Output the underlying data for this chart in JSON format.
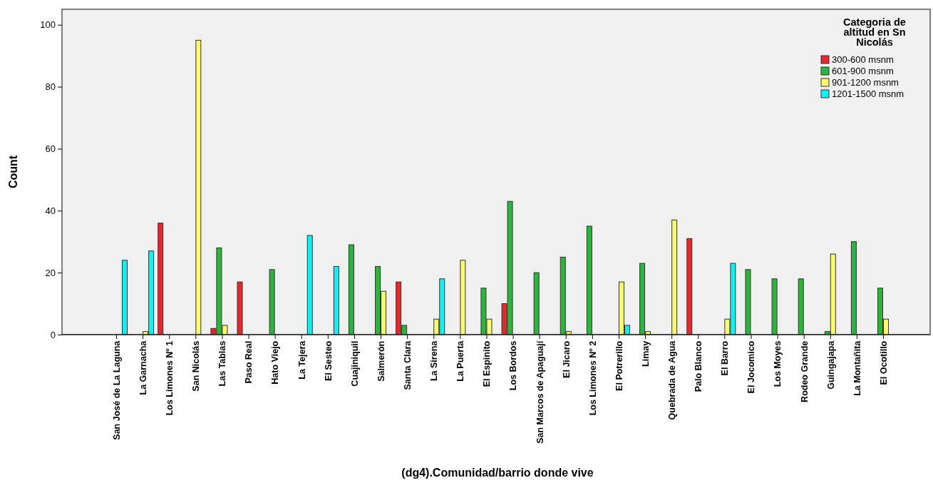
{
  "chart_data": {
    "type": "bar",
    "xlabel": "(dg4).Comunidad/barrio donde vive",
    "ylabel": "Count",
    "legend_title": "Categoria de altitud en Sn Nicolás",
    "legend": "top right",
    "grid": false,
    "categories": [
      "San José de La Laguna",
      "La Garnacha",
      "Los Limones Nº 1",
      "San Nicolás",
      "Las Tablas",
      "Paso Real",
      "Hato Viejo",
      "La Tejera",
      "El Sesteo",
      "Cuajiniquil",
      "Salmerón",
      "Santa Clara",
      "La Sirena",
      "La Puerta",
      "El Espinito",
      "Los Bordos",
      "San Marcos de Apaguají",
      "El Jicaro",
      "Los Limones Nº 2",
      "El Potrerillo",
      "Limay",
      "Quebrada de Agua",
      "Palo Blanco",
      "El Barro",
      "El Jocomico",
      "Los Moyes",
      "Rodeo Grande",
      "Guingajapa",
      "La Montañita",
      "El Ocotillo"
    ],
    "series": [
      {
        "name": "300-600 msnm",
        "color": "#e8262d",
        "values": [
          null,
          null,
          36,
          null,
          2,
          17,
          null,
          null,
          null,
          null,
          null,
          17,
          null,
          null,
          null,
          10,
          null,
          null,
          null,
          null,
          null,
          null,
          31,
          null,
          null,
          null,
          null,
          null,
          null,
          null
        ]
      },
      {
        "name": "601-900 msnm",
        "color": "#2db43c",
        "values": [
          null,
          null,
          null,
          null,
          28,
          null,
          21,
          null,
          null,
          29,
          22,
          3,
          null,
          null,
          15,
          43,
          20,
          25,
          35,
          null,
          23,
          null,
          null,
          null,
          21,
          18,
          18,
          1,
          30,
          15
        ]
      },
      {
        "name": "901-1200 msnm",
        "color": "#fafa6e",
        "values": [
          null,
          1,
          null,
          95,
          3,
          null,
          null,
          null,
          null,
          null,
          14,
          null,
          5,
          24,
          5,
          null,
          null,
          1,
          null,
          17,
          1,
          37,
          null,
          5,
          null,
          null,
          null,
          26,
          null,
          5
        ]
      },
      {
        "name": "1201-1500 msnm",
        "color": "#14f0f0",
        "values": [
          24,
          27,
          null,
          null,
          null,
          null,
          null,
          32,
          22,
          null,
          null,
          null,
          18,
          null,
          null,
          null,
          null,
          null,
          null,
          3,
          null,
          null,
          null,
          23,
          null,
          null,
          null,
          null,
          null,
          null
        ]
      }
    ],
    "ylim": [
      0,
      105
    ],
    "yticks": [
      0,
      20,
      40,
      60,
      80,
      100
    ]
  }
}
